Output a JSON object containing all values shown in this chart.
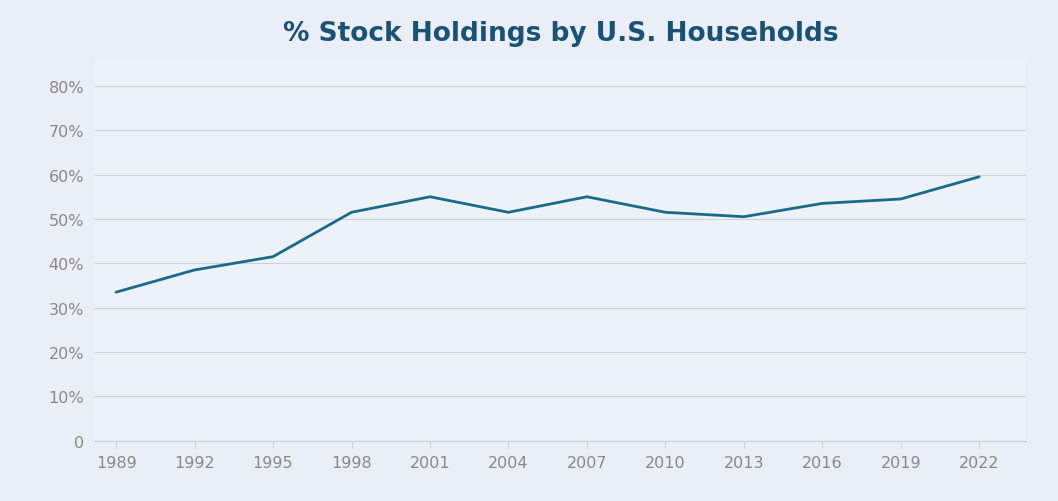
{
  "title": "% Stock Holdings by U.S. Households",
  "title_color": "#1a5276",
  "title_fontsize": 19,
  "background_color": "#eaeff7",
  "plot_background_color": "#edf1f8",
  "line_color": "#1a6b8a",
  "line_width": 2.0,
  "years": [
    1989,
    1992,
    1995,
    1998,
    2001,
    2004,
    2007,
    2010,
    2013,
    2016,
    2019,
    2022
  ],
  "values": [
    0.335,
    0.385,
    0.415,
    0.515,
    0.55,
    0.515,
    0.55,
    0.515,
    0.505,
    0.535,
    0.545,
    0.595
  ],
  "yticks": [
    0,
    0.1,
    0.2,
    0.3,
    0.4,
    0.5,
    0.6,
    0.7,
    0.8
  ],
  "ytick_labels": [
    "0",
    "10%",
    "20%",
    "30%",
    "40%",
    "50%",
    "60%",
    "70%",
    "80%"
  ],
  "xticks": [
    1989,
    1992,
    1995,
    1998,
    2001,
    2004,
    2007,
    2010,
    2013,
    2016,
    2019,
    2022
  ],
  "grid_color": "#c9d3df",
  "tick_label_color": "#888888",
  "ylim": [
    0,
    0.86
  ],
  "xlim": [
    1988.2,
    2023.8
  ]
}
